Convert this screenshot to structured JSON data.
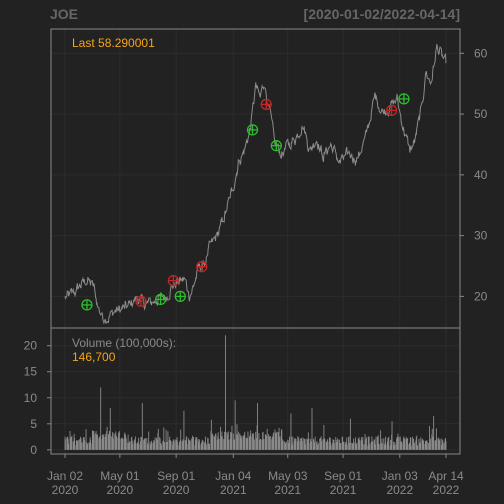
{
  "header": {
    "symbol": "JOE",
    "range": "[2020-01-02/2022-04-14]"
  },
  "colors": {
    "background": "#222222",
    "panel_border": "#888888",
    "grid": "#2c2c2c",
    "price_line": "#8c8c8c",
    "volume_bars": "#8a8a8a",
    "accent": "#f5a418",
    "buy_marker": "#2bbf2b",
    "sell_marker": "#c22727",
    "text": "#8a8a8a"
  },
  "chart_data": [
    {
      "type": "line",
      "panel": "price",
      "last_label": "Last 58.290001",
      "ylim": [
        14.8,
        64
      ],
      "yticks": [
        20,
        30,
        40,
        50,
        60
      ],
      "xlim": [
        "2020-01-02",
        "2022-04-14"
      ],
      "x_ticks": [
        {
          "date": "2020-01-02",
          "line1": "Jan 02",
          "line2": "2020"
        },
        {
          "date": "2020-05-01",
          "line1": "May 01",
          "line2": "2020"
        },
        {
          "date": "2020-09-01",
          "line1": "Sep 01",
          "line2": "2020"
        },
        {
          "date": "2021-01-04",
          "line1": "Jan 04",
          "line2": "2021"
        },
        {
          "date": "2021-05-03",
          "line1": "May 03",
          "line2": "2021"
        },
        {
          "date": "2021-09-01",
          "line1": "Sep 01",
          "line2": "2021"
        },
        {
          "date": "2022-01-03",
          "line1": "Jan 03",
          "line2": "2022"
        },
        {
          "date": "2022-04-14",
          "line1": "Apr 14",
          "line2": "2022"
        }
      ],
      "price_anchors": [
        [
          "2020-01-02",
          19.8
        ],
        [
          "2020-01-20",
          20.5
        ],
        [
          "2020-02-05",
          21.8
        ],
        [
          "2020-02-20",
          22.7
        ],
        [
          "2020-03-05",
          21.5
        ],
        [
          "2020-03-13",
          18.5
        ],
        [
          "2020-03-23",
          16.8
        ],
        [
          "2020-04-05",
          16.5
        ],
        [
          "2020-04-20",
          17.6
        ],
        [
          "2020-05-01",
          17.8
        ],
        [
          "2020-05-20",
          18.4
        ],
        [
          "2020-06-08",
          19.8
        ],
        [
          "2020-06-25",
          18.6
        ],
        [
          "2020-07-10",
          19.0
        ],
        [
          "2020-07-25",
          19.6
        ],
        [
          "2020-08-10",
          20.0
        ],
        [
          "2020-08-25",
          21.8
        ],
        [
          "2020-09-05",
          22.4
        ],
        [
          "2020-09-20",
          22.8
        ],
        [
          "2020-09-30",
          20.2
        ],
        [
          "2020-10-08",
          21.5
        ],
        [
          "2020-10-20",
          24.5
        ],
        [
          "2020-11-01",
          25.0
        ],
        [
          "2020-11-12",
          27.8
        ],
        [
          "2020-11-30",
          30.0
        ],
        [
          "2020-12-15",
          33.0
        ],
        [
          "2021-01-04",
          38.0
        ],
        [
          "2021-01-15",
          42.0
        ],
        [
          "2021-01-28",
          44.0
        ],
        [
          "2021-02-10",
          47.5
        ],
        [
          "2021-02-22",
          54.5
        ],
        [
          "2021-03-04",
          52.5
        ],
        [
          "2021-03-12",
          55.5
        ],
        [
          "2021-03-22",
          51.5
        ],
        [
          "2021-04-05",
          45.0
        ],
        [
          "2021-04-20",
          43.5
        ],
        [
          "2021-05-05",
          45.0
        ],
        [
          "2021-05-20",
          46.0
        ],
        [
          "2021-06-05",
          48.5
        ],
        [
          "2021-06-20",
          44.0
        ],
        [
          "2021-07-05",
          46.0
        ],
        [
          "2021-07-20",
          43.0
        ],
        [
          "2021-08-05",
          45.0
        ],
        [
          "2021-08-25",
          42.0
        ],
        [
          "2021-09-15",
          43.5
        ],
        [
          "2021-10-01",
          42.5
        ],
        [
          "2021-10-20",
          46.0
        ],
        [
          "2021-11-01",
          50.0
        ],
        [
          "2021-11-10",
          53.0
        ],
        [
          "2021-11-25",
          50.5
        ],
        [
          "2021-12-10",
          51.0
        ],
        [
          "2021-12-28",
          52.5
        ],
        [
          "2022-01-10",
          48.0
        ],
        [
          "2022-01-25",
          44.0
        ],
        [
          "2022-02-05",
          45.5
        ],
        [
          "2022-02-20",
          51.0
        ],
        [
          "2022-03-01",
          57.0
        ],
        [
          "2022-03-12",
          55.0
        ],
        [
          "2022-03-25",
          61.0
        ],
        [
          "2022-04-05",
          59.5
        ],
        [
          "2022-04-14",
          58.3
        ]
      ],
      "signals": [
        {
          "date": "2020-02-19",
          "price": 18.6,
          "kind": "buy"
        },
        {
          "date": "2020-06-16",
          "price": 19.2,
          "kind": "sell"
        },
        {
          "date": "2020-07-29",
          "price": 19.5,
          "kind": "buy"
        },
        {
          "date": "2020-08-26",
          "price": 22.6,
          "kind": "sell"
        },
        {
          "date": "2020-09-10",
          "price": 20.0,
          "kind": "buy"
        },
        {
          "date": "2020-10-27",
          "price": 24.9,
          "kind": "sell"
        },
        {
          "date": "2021-02-15",
          "price": 47.4,
          "kind": "buy"
        },
        {
          "date": "2021-03-17",
          "price": 51.6,
          "kind": "sell"
        },
        {
          "date": "2021-04-08",
          "price": 44.8,
          "kind": "buy"
        },
        {
          "date": "2021-12-16",
          "price": 50.6,
          "kind": "sell"
        },
        {
          "date": "2022-01-12",
          "price": 52.5,
          "kind": "buy"
        }
      ]
    },
    {
      "type": "bar",
      "panel": "volume",
      "label": "Volume (100,000s):",
      "last_value": "146,700",
      "ylim": [
        -0.8,
        23.4
      ],
      "yticks": [
        0,
        5,
        10,
        15,
        20
      ],
      "volume_spikes": [
        [
          "2020-03-20",
          12.0
        ],
        [
          "2020-04-10",
          8.0
        ],
        [
          "2020-06-19",
          9.0
        ],
        [
          "2020-09-18",
          7.5
        ],
        [
          "2020-12-18",
          22.0
        ],
        [
          "2021-01-08",
          9.5
        ],
        [
          "2021-02-26",
          9.0
        ],
        [
          "2021-05-10",
          7.0
        ],
        [
          "2021-06-25",
          8.0
        ],
        [
          "2021-09-17",
          6.0
        ],
        [
          "2021-12-17",
          5.5
        ],
        [
          "2022-03-18",
          6.5
        ]
      ]
    }
  ]
}
